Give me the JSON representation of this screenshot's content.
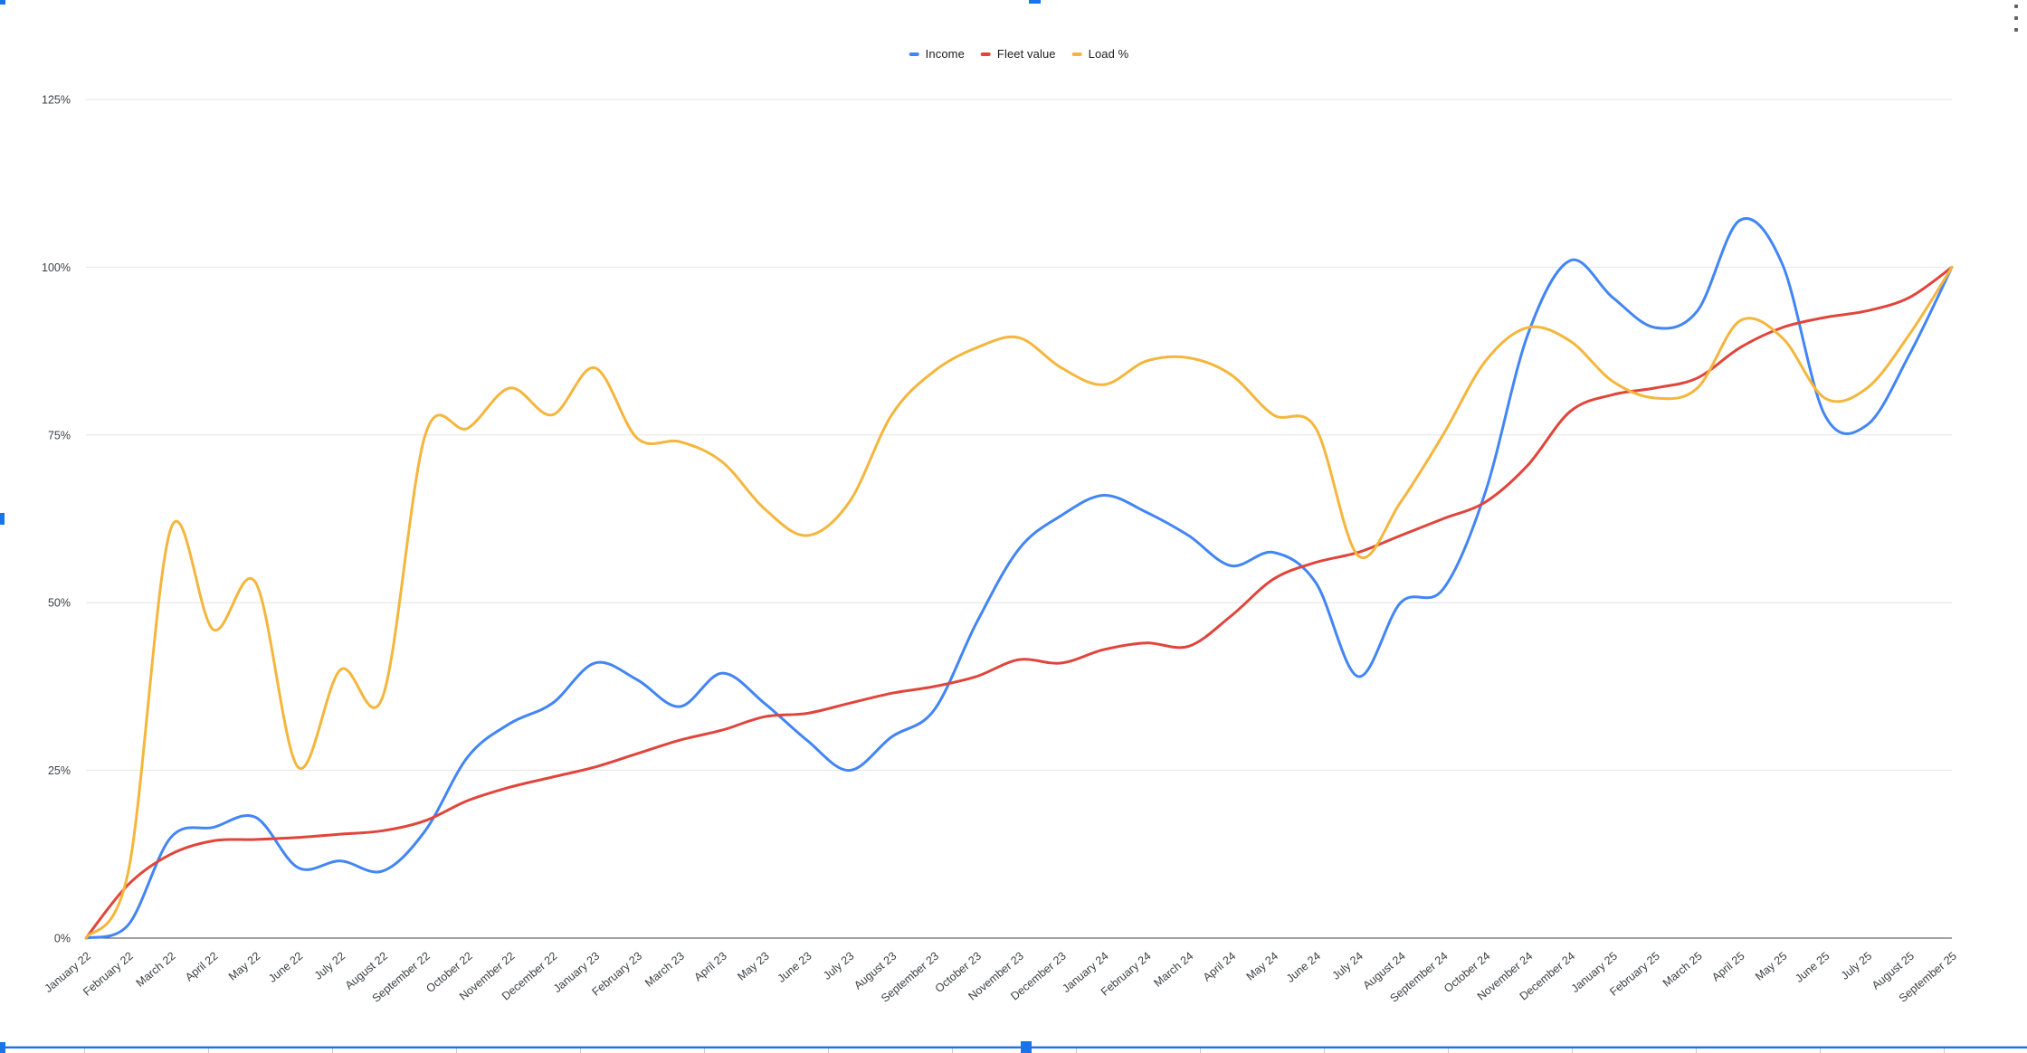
{
  "legend": {
    "items": [
      {
        "label": "Income",
        "color": "#4285F4"
      },
      {
        "label": "Fleet value",
        "color": "#E0453B"
      },
      {
        "label": "Load %",
        "color": "#F4B63C"
      }
    ]
  },
  "y_axis": {
    "ticks": [
      "0%",
      "25%",
      "50%",
      "75%",
      "100%",
      "125%"
    ],
    "values": [
      0,
      25,
      50,
      75,
      100,
      125
    ]
  },
  "selection": {
    "accent_color": "#1a73e8",
    "menu_icon": "kebab-vertical-icon"
  },
  "chart_data": {
    "type": "line",
    "smooth": true,
    "grid": true,
    "legend_position": "top-center",
    "title": "",
    "xlabel": "",
    "ylabel": "",
    "ylim": [
      0,
      125
    ],
    "ytick_step": 25,
    "categories": [
      "January 22",
      "February 22",
      "March 22",
      "April 22",
      "May 22",
      "June 22",
      "July 22",
      "August 22",
      "September 22",
      "October 22",
      "November 22",
      "December 22",
      "January 23",
      "February 23",
      "March 23",
      "April 23",
      "May 23",
      "June 23",
      "July 23",
      "August 23",
      "September 23",
      "October 23",
      "November 23",
      "December 23",
      "January 24",
      "February 24",
      "March 24",
      "April 24",
      "May 24",
      "June 24",
      "July 24",
      "August 24",
      "September 24",
      "October 24",
      "November 24",
      "December 24",
      "January 25",
      "February 25",
      "March 25",
      "April 25",
      "May 25",
      "June 25",
      "July 25",
      "August 25",
      "September 25"
    ],
    "series": [
      {
        "name": "Income",
        "color": "#4285F4",
        "values": [
          0,
          2,
          15,
          16.5,
          18,
          10.5,
          11.5,
          10,
          16,
          27,
          32,
          35,
          41,
          38.5,
          34.5,
          39.5,
          35,
          29.5,
          25,
          30,
          34,
          47,
          58,
          63,
          66,
          63.5,
          60,
          55.5,
          57.5,
          53,
          39,
          50,
          52,
          66.5,
          90,
          101,
          95.5,
          91,
          93.5,
          107,
          100.5,
          78,
          76.5,
          87,
          100
        ]
      },
      {
        "name": "Fleet value",
        "color": "#E0453B",
        "values": [
          0,
          8,
          12.5,
          14.5,
          14.7,
          15,
          15.5,
          16,
          17.5,
          20.5,
          22.5,
          24,
          25.5,
          27.5,
          29.5,
          31,
          33,
          33.5,
          35,
          36.5,
          37.5,
          39,
          41.5,
          41,
          43,
          44,
          43.5,
          48,
          53.5,
          56,
          57.5,
          60,
          62.5,
          65,
          70.5,
          78.5,
          81,
          82,
          83.5,
          88,
          91,
          92.5,
          93.5,
          95.5,
          100
        ]
      },
      {
        "name": "Load %",
        "color": "#F4B63C",
        "values": [
          0,
          10,
          61,
          46,
          53,
          25.5,
          40,
          36,
          75,
          76,
          82,
          78,
          85,
          74.5,
          74,
          71,
          64,
          60,
          65,
          78,
          84.5,
          88,
          89.5,
          85,
          82.5,
          86,
          86.5,
          84,
          78,
          76,
          57,
          65,
          75,
          86,
          91,
          89,
          83,
          80.5,
          82,
          92,
          89.5,
          80.5,
          82,
          90,
          100
        ]
      }
    ]
  }
}
